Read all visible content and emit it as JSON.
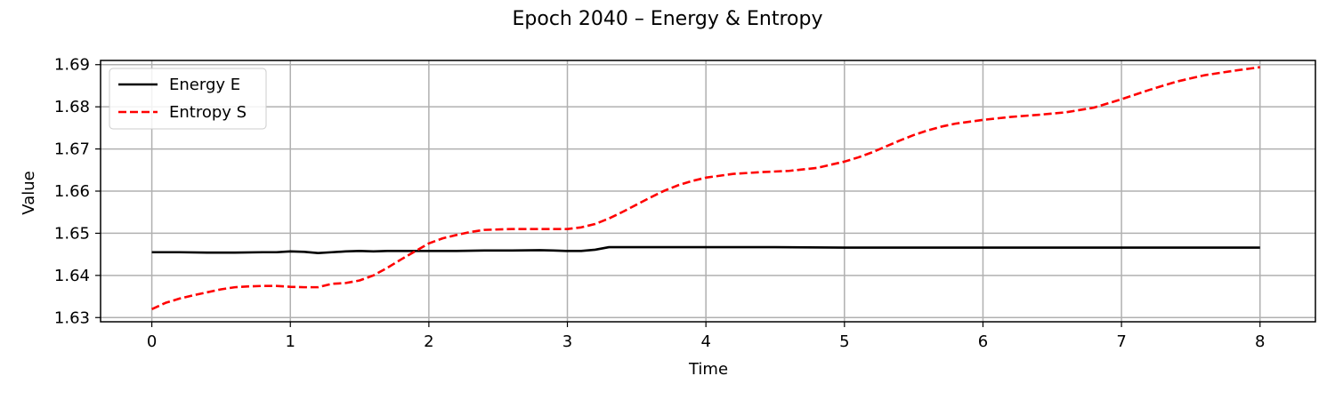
{
  "chart_data": {
    "type": "line",
    "title": "Epoch 2040 – Energy & Entropy",
    "xlabel": "Time",
    "ylabel": "Value",
    "xlim": [
      -0.37,
      8.4
    ],
    "ylim": [
      1.629,
      1.691
    ],
    "xticks": [
      0,
      1,
      2,
      3,
      4,
      5,
      6,
      7,
      8
    ],
    "xtick_labels": [
      "0",
      "1",
      "2",
      "3",
      "4",
      "5",
      "6",
      "7",
      "8"
    ],
    "yticks": [
      1.63,
      1.64,
      1.65,
      1.66,
      1.67,
      1.68,
      1.69
    ],
    "ytick_labels": [
      "1.63",
      "1.64",
      "1.65",
      "1.66",
      "1.67",
      "1.68",
      "1.69"
    ],
    "grid": true,
    "legend_position": "top-left",
    "series": [
      {
        "name": "Energy E",
        "color": "#000000",
        "style": "solid",
        "x": [
          0,
          0.2,
          0.4,
          0.6,
          0.8,
          0.9,
          1.0,
          1.1,
          1.2,
          1.3,
          1.4,
          1.5,
          1.6,
          1.7,
          1.8,
          2.0,
          2.2,
          2.4,
          2.6,
          2.8,
          2.9,
          3.0,
          3.1,
          3.2,
          3.3,
          3.5,
          4.0,
          4.5,
          5.0,
          5.5,
          6.0,
          6.5,
          7.0,
          7.5,
          8.0
        ],
        "y": [
          1.6455,
          1.6455,
          1.6454,
          1.6454,
          1.6455,
          1.6455,
          1.6457,
          1.6456,
          1.6453,
          1.6455,
          1.6457,
          1.6458,
          1.6457,
          1.6458,
          1.6458,
          1.6458,
          1.6458,
          1.6459,
          1.6459,
          1.646,
          1.6459,
          1.6458,
          1.6458,
          1.6461,
          1.6467,
          1.6467,
          1.6467,
          1.6467,
          1.6466,
          1.6466,
          1.6466,
          1.6466,
          1.6466,
          1.6466,
          1.6466
        ]
      },
      {
        "name": "Entropy S",
        "color": "#ff0000",
        "style": "dashed",
        "x": [
          0,
          0.1,
          0.2,
          0.3,
          0.4,
          0.5,
          0.6,
          0.7,
          0.8,
          0.9,
          1.0,
          1.1,
          1.2,
          1.3,
          1.4,
          1.5,
          1.6,
          1.7,
          1.8,
          1.9,
          2.0,
          2.1,
          2.2,
          2.3,
          2.4,
          2.6,
          2.8,
          3.0,
          3.1,
          3.2,
          3.3,
          3.4,
          3.5,
          3.6,
          3.7,
          3.8,
          3.9,
          4.0,
          4.2,
          4.4,
          4.6,
          4.8,
          5.0,
          5.1,
          5.2,
          5.3,
          5.4,
          5.5,
          5.6,
          5.7,
          5.8,
          6.0,
          6.2,
          6.4,
          6.6,
          6.8,
          7.0,
          7.2,
          7.4,
          7.6,
          7.8,
          8.0
        ],
        "y": [
          1.632,
          1.6335,
          1.6345,
          1.6353,
          1.636,
          1.6367,
          1.6372,
          1.6374,
          1.6375,
          1.6375,
          1.6373,
          1.6372,
          1.6372,
          1.638,
          1.6382,
          1.6388,
          1.64,
          1.6418,
          1.6438,
          1.6457,
          1.6476,
          1.6488,
          1.6496,
          1.6503,
          1.6508,
          1.651,
          1.651,
          1.651,
          1.6514,
          1.6522,
          1.6535,
          1.6551,
          1.6568,
          1.6585,
          1.6601,
          1.6614,
          1.6624,
          1.6632,
          1.6641,
          1.6645,
          1.6648,
          1.6655,
          1.667,
          1.668,
          1.6692,
          1.6706,
          1.672,
          1.6733,
          1.6744,
          1.6753,
          1.676,
          1.6769,
          1.6776,
          1.6781,
          1.6787,
          1.6798,
          1.6818,
          1.684,
          1.686,
          1.6875,
          1.6885,
          1.6894
        ]
      }
    ]
  }
}
